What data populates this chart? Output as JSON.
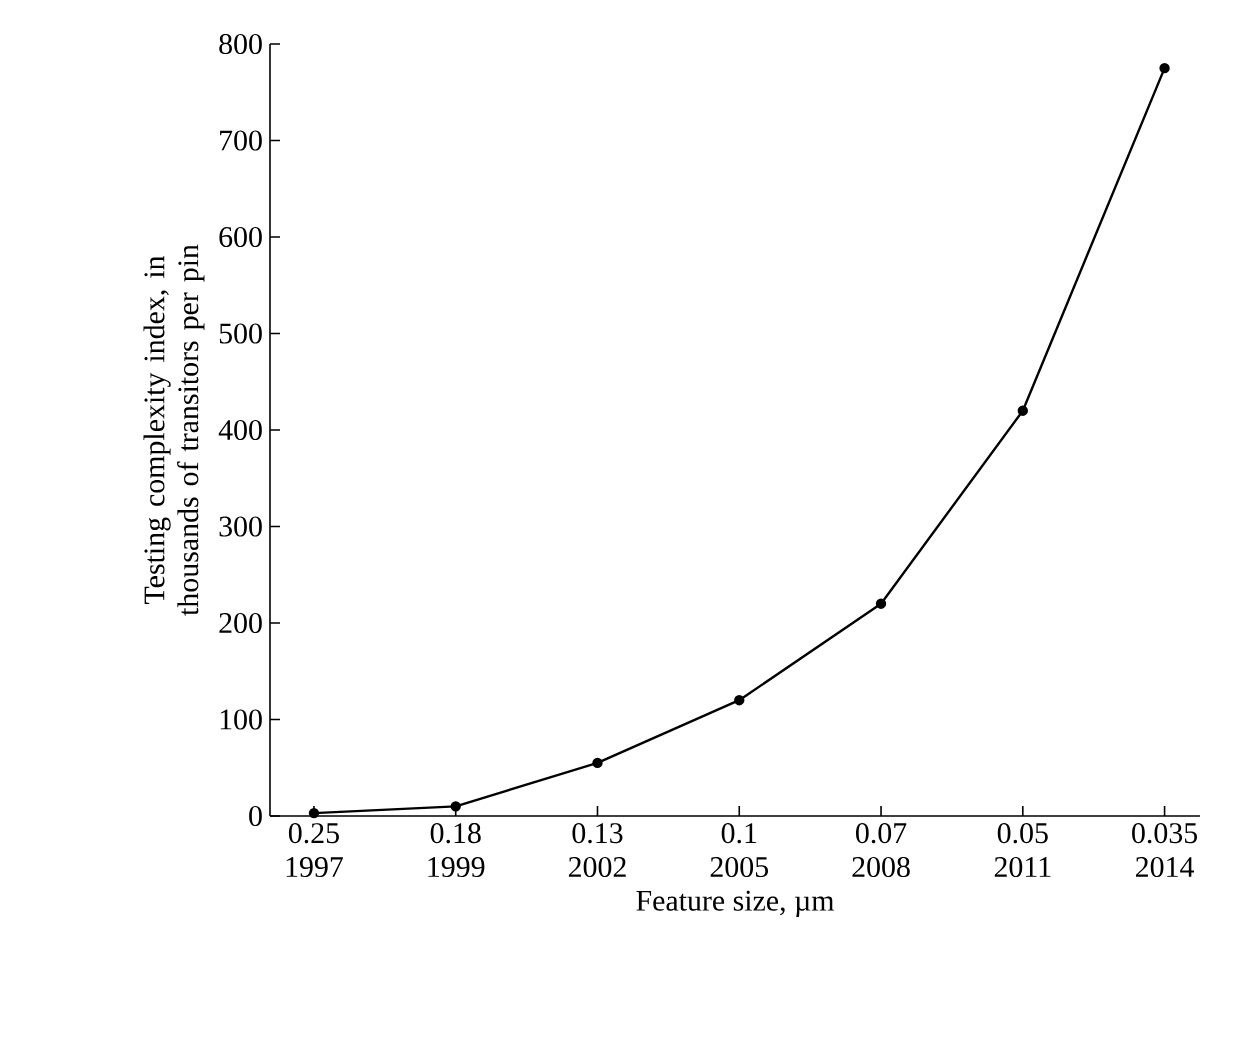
{
  "chart_data": {
    "type": "line",
    "xlabel": "Feature size, µm",
    "ylabel": "Testing complexity index, in thousands of transitors per pin",
    "categories": [
      "0.25 1997",
      "0.18 1999",
      "0.13 2002",
      "0.1 2005",
      "0.07 2008",
      "0.05 2011",
      "0.035 2014"
    ],
    "values": [
      3,
      10,
      55,
      120,
      220,
      420,
      775
    ],
    "color": "#000000",
    "marker": "circle",
    "line_style": "solid",
    "ylim": [
      0,
      800
    ],
    "yticks": [
      0,
      100,
      200,
      300,
      400,
      500,
      600,
      700,
      800
    ],
    "grid": false
  }
}
